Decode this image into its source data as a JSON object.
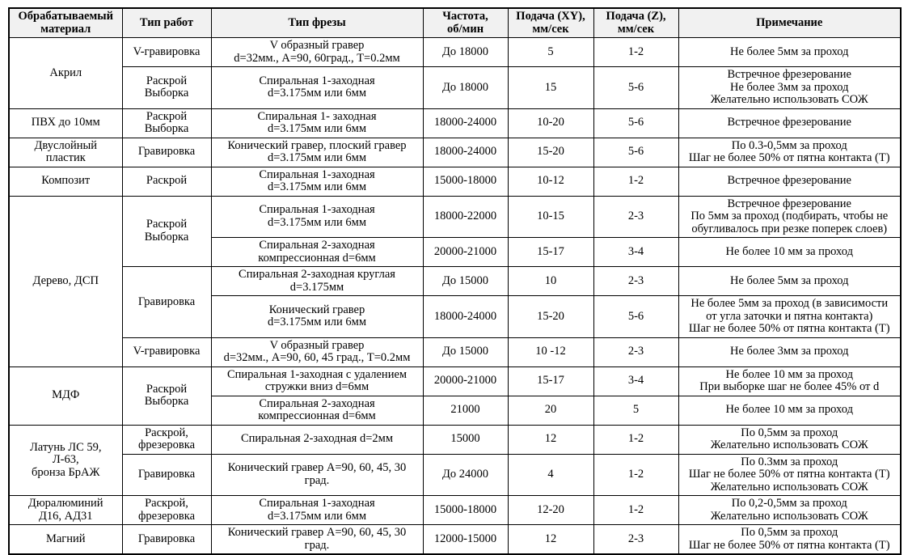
{
  "table": {
    "headers": {
      "material": "Обрабатываемый\nматериал",
      "work": "Тип работ",
      "cutter": "Тип фрезы",
      "frequency": "Частота,\nоб/мин",
      "feed_xy": "Подача (XY),\nмм/сек",
      "feed_z": "Подача (Z),\nмм/сек",
      "note": "Примечание"
    },
    "colors": {
      "header_bg": "#f1f1f1",
      "border": "#000000",
      "text": "#000000"
    },
    "rows": [
      {
        "cells": [
          {
            "text": "Акрил"
          },
          {
            "text": "V-гравировка"
          },
          {
            "text": "V образный гравер\nd=32мм., А=90, 60град., Т=0.2мм"
          },
          {
            "text": "До 18000"
          },
          {
            "text": "5"
          },
          {
            "text": "1-2"
          },
          {
            "text": "Не более 5мм за проход"
          }
        ]
      },
      {
        "cells": [
          {
            "text": "Раскрой\nВыборка"
          },
          {
            "text": "Спиральная 1-заходная\nd=3.175мм или 6мм"
          },
          {
            "text": "До 18000"
          },
          {
            "text": "15"
          },
          {
            "text": "5-6"
          },
          {
            "text": "Встречное фрезерование\nНе более 3мм за проход\nЖелательно использовать СОЖ"
          }
        ]
      },
      {
        "cells": [
          {
            "text": "ПВХ до 10мм"
          },
          {
            "text": "Раскрой\nВыборка"
          },
          {
            "text": "Спиральная 1- заходная\nd=3.175мм или 6мм"
          },
          {
            "text": "18000-24000"
          },
          {
            "text": "10-20"
          },
          {
            "text": "5-6"
          },
          {
            "text": "Встречное фрезерование"
          }
        ]
      },
      {
        "cells": [
          {
            "text": "Двуслойный\nпластик"
          },
          {
            "text": "Гравировка"
          },
          {
            "text": "Конический гравер, плоский гравер\nd=3.175мм или 6мм"
          },
          {
            "text": "18000-24000"
          },
          {
            "text": "15-20"
          },
          {
            "text": "5-6"
          },
          {
            "text": "По 0.3-0,5мм за проход\nШаг не более 50% от пятна контакта (Т)"
          }
        ]
      },
      {
        "cells": [
          {
            "text": "Композит"
          },
          {
            "text": "Раскрой"
          },
          {
            "text": "Спиральная 1-заходная\nd=3.175мм или 6мм"
          },
          {
            "text": "15000-18000"
          },
          {
            "text": "10-12"
          },
          {
            "text": "1-2"
          },
          {
            "text": "Встречное фрезерование"
          }
        ]
      },
      {
        "cells": [
          {
            "text": "Дерево, ДСП"
          },
          {
            "text": "Раскрой\nВыборка"
          },
          {
            "text": "Спиральная 1-заходная\nd=3.175мм или 6мм"
          },
          {
            "text": "18000-22000"
          },
          {
            "text": "10-15"
          },
          {
            "text": "2-3"
          },
          {
            "text": "Встречное фрезерование\nПо 5мм за проход (подбирать, чтобы не\nобугливалось при резке поперек слоев)"
          }
        ]
      },
      {
        "cells": [
          {
            "text": "Спиральная 2-заходная\nкомпрессионная d=6мм"
          },
          {
            "text": "20000-21000"
          },
          {
            "text": "15-17"
          },
          {
            "text": "3-4"
          },
          {
            "text": "Не более 10 мм за проход"
          }
        ]
      },
      {
        "cells": [
          {
            "text": "Гравировка"
          },
          {
            "text": "Спиральная 2-заходная круглая\nd=3.175мм"
          },
          {
            "text": "До 15000"
          },
          {
            "text": "10"
          },
          {
            "text": "2-3"
          },
          {
            "text": "Не более 5мм за проход"
          }
        ]
      },
      {
        "cells": [
          {
            "text": "Конический гравер\nd=3.175мм или 6мм"
          },
          {
            "text": "18000-24000"
          },
          {
            "text": "15-20"
          },
          {
            "text": "5-6"
          },
          {
            "text": "Не более 5мм за проход (в зависимости\nот угла заточки и пятна контакта)\nШаг не более 50% от пятна контакта (Т)"
          }
        ]
      },
      {
        "cells": [
          {
            "text": "V-гравировка"
          },
          {
            "text": "V образный гравер\nd=32мм., А=90, 60, 45 град., Т=0.2мм"
          },
          {
            "text": "До 15000"
          },
          {
            "text": "10 -12"
          },
          {
            "text": "2-3"
          },
          {
            "text": "Не более 3мм за проход"
          }
        ]
      },
      {
        "cells": [
          {
            "text": "МДФ"
          },
          {
            "text": "Раскрой\nВыборка"
          },
          {
            "text": "Спиральная 1-заходная с удалением\nстружки вниз d=6мм"
          },
          {
            "text": "20000-21000"
          },
          {
            "text": "15-17"
          },
          {
            "text": "3-4"
          },
          {
            "text": "Не более 10 мм за проход\nПри выборке шаг не более 45% от d"
          }
        ]
      },
      {
        "cells": [
          {
            "text": "Спиральная 2-заходная\nкомпрессионная d=6мм"
          },
          {
            "text": "21000"
          },
          {
            "text": "20"
          },
          {
            "text": "5"
          },
          {
            "text": "Не более 10 мм за проход"
          }
        ]
      },
      {
        "cells": [
          {
            "text": "Латунь ЛС 59,\nЛ-63,\nбронза БрАЖ"
          },
          {
            "text": "Раскрой,\nфрезеровка"
          },
          {
            "text": "Спиральная 2-заходная d=2мм"
          },
          {
            "text": "15000"
          },
          {
            "text": "12"
          },
          {
            "text": "1-2"
          },
          {
            "text": "По 0,5мм за проход\nЖелательно использовать СОЖ"
          }
        ]
      },
      {
        "cells": [
          {
            "text": "Гравировка"
          },
          {
            "text": "Конический гравер А=90, 60, 45, 30\nград."
          },
          {
            "text": "До 24000"
          },
          {
            "text": "4"
          },
          {
            "text": "1-2"
          },
          {
            "text": "По 0.3мм за проход\nШаг не более 50% от пятна контакта (Т)\nЖелательно использовать СОЖ"
          }
        ]
      },
      {
        "cells": [
          {
            "text": "Дюралюминий\nД16, АД31"
          },
          {
            "text": "Раскрой,\nфрезеровка"
          },
          {
            "text": "Спиральная 1-заходная\nd=3.175мм или 6мм"
          },
          {
            "text": "15000-18000"
          },
          {
            "text": "12-20"
          },
          {
            "text": "1-2"
          },
          {
            "text": "По 0,2-0,5мм за проход\nЖелательно использовать СОЖ"
          }
        ]
      },
      {
        "cells": [
          {
            "text": "Магний"
          },
          {
            "text": "Гравировка"
          },
          {
            "text": "Конический гравер А=90, 60, 45, 30\nград."
          },
          {
            "text": "12000-15000"
          },
          {
            "text": "12"
          },
          {
            "text": "2-3"
          },
          {
            "text": "По 0,5мм за проход\nШаг не более 50% от пятна контакта (Т)"
          }
        ]
      }
    ]
  }
}
